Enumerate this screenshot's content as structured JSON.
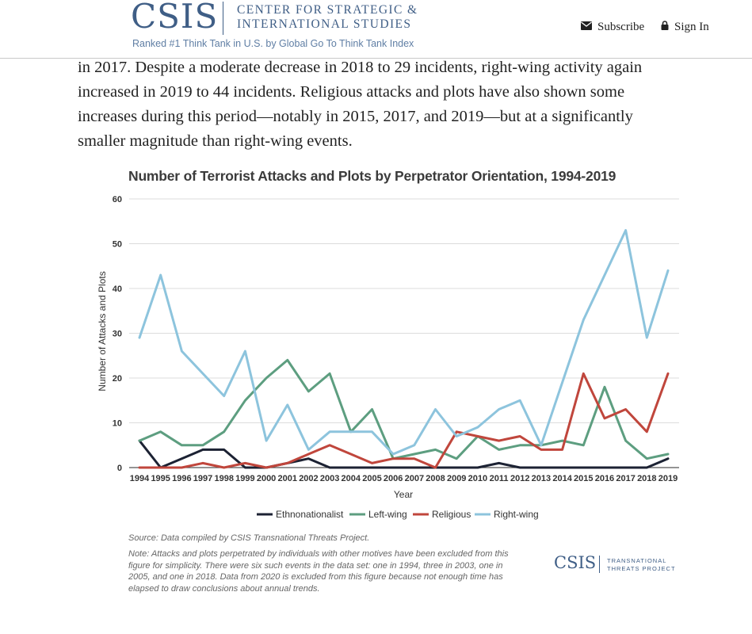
{
  "header": {
    "logo": "CSIS",
    "org_line1": "CENTER FOR STRATEGIC &",
    "org_line2": "INTERNATIONAL STUDIES",
    "tagline": "Ranked #1 Think Tank in U.S. by Global Go To Think Tank Index",
    "subscribe_label": "Subscribe",
    "signin_label": "Sign In",
    "subscribe_icon": "envelope-icon",
    "signin_icon": "lock-icon"
  },
  "article": {
    "paragraph": "in 2017. Despite a moderate decrease in 2018 to 29 incidents, right-wing activity again increased in 2019 to 44 incidents. Religious attacks and plots have also shown some increases during this period—notably in 2015, 2017, and 2019—but at a significantly smaller magnitude than right-wing events."
  },
  "chart_data": {
    "type": "line",
    "title": "Number of Terrorist Attacks and Plots by Perpetrator Orientation, 1994-2019",
    "xlabel": "Year",
    "ylabel": "Number of Attacks and Plots",
    "ylim": [
      0,
      60
    ],
    "yticks": [
      0,
      10,
      20,
      30,
      40,
      50,
      60
    ],
    "grid": "horizontal",
    "legend_position": "bottom",
    "x": [
      "1994",
      "1995",
      "1996",
      "1997",
      "1998",
      "1999",
      "2000",
      "2001",
      "2002",
      "2003",
      "2004",
      "2005",
      "2006",
      "2007",
      "2008",
      "2009",
      "2010",
      "2011",
      "2012",
      "2013",
      "2014",
      "2015",
      "2016",
      "2017",
      "2018",
      "2019"
    ],
    "series": [
      {
        "name": "Ethnonationalist",
        "color": "#1c2233",
        "values": [
          6,
          0,
          2,
          4,
          4,
          0,
          0,
          1,
          2,
          0,
          0,
          0,
          0,
          0,
          0,
          0,
          0,
          1,
          0,
          0,
          0,
          0,
          0,
          0,
          0,
          2
        ]
      },
      {
        "name": "Left-wing",
        "color": "#5d9e80",
        "values": [
          6,
          8,
          5,
          5,
          8,
          15,
          20,
          24,
          17,
          21,
          8,
          13,
          2,
          3,
          4,
          2,
          7,
          4,
          5,
          5,
          6,
          5,
          18,
          6,
          2,
          3
        ]
      },
      {
        "name": "Religious",
        "color": "#c0463c",
        "values": [
          0,
          0,
          0,
          1,
          0,
          1,
          0,
          1,
          3,
          5,
          3,
          1,
          2,
          2,
          0,
          8,
          7,
          6,
          7,
          4,
          4,
          21,
          11,
          13,
          8,
          21
        ]
      },
      {
        "name": "Right-wing",
        "color": "#8dc4dd",
        "values": [
          29,
          43,
          26,
          21,
          16,
          26,
          6,
          14,
          4,
          8,
          8,
          8,
          3,
          5,
          13,
          7,
          9,
          13,
          15,
          5,
          19,
          33,
          43,
          53,
          29,
          44
        ]
      }
    ]
  },
  "footer": {
    "source": "Source: Data compiled by CSIS Transnational Threats Project.",
    "note": "Note: Attacks and plots perpetrated by individuals with other motives have been excluded from this figure for simplicity. There were six such events in the data set: one in 1994, three in 2003, one in 2005, and one in 2018. Data from 2020 is excluded from this figure because not enough time has elapsed to draw conclusions about annual trends.",
    "logo": "CSIS",
    "logo_line1": "TRANSNATIONAL",
    "logo_line2": "THREATS PROJECT"
  }
}
